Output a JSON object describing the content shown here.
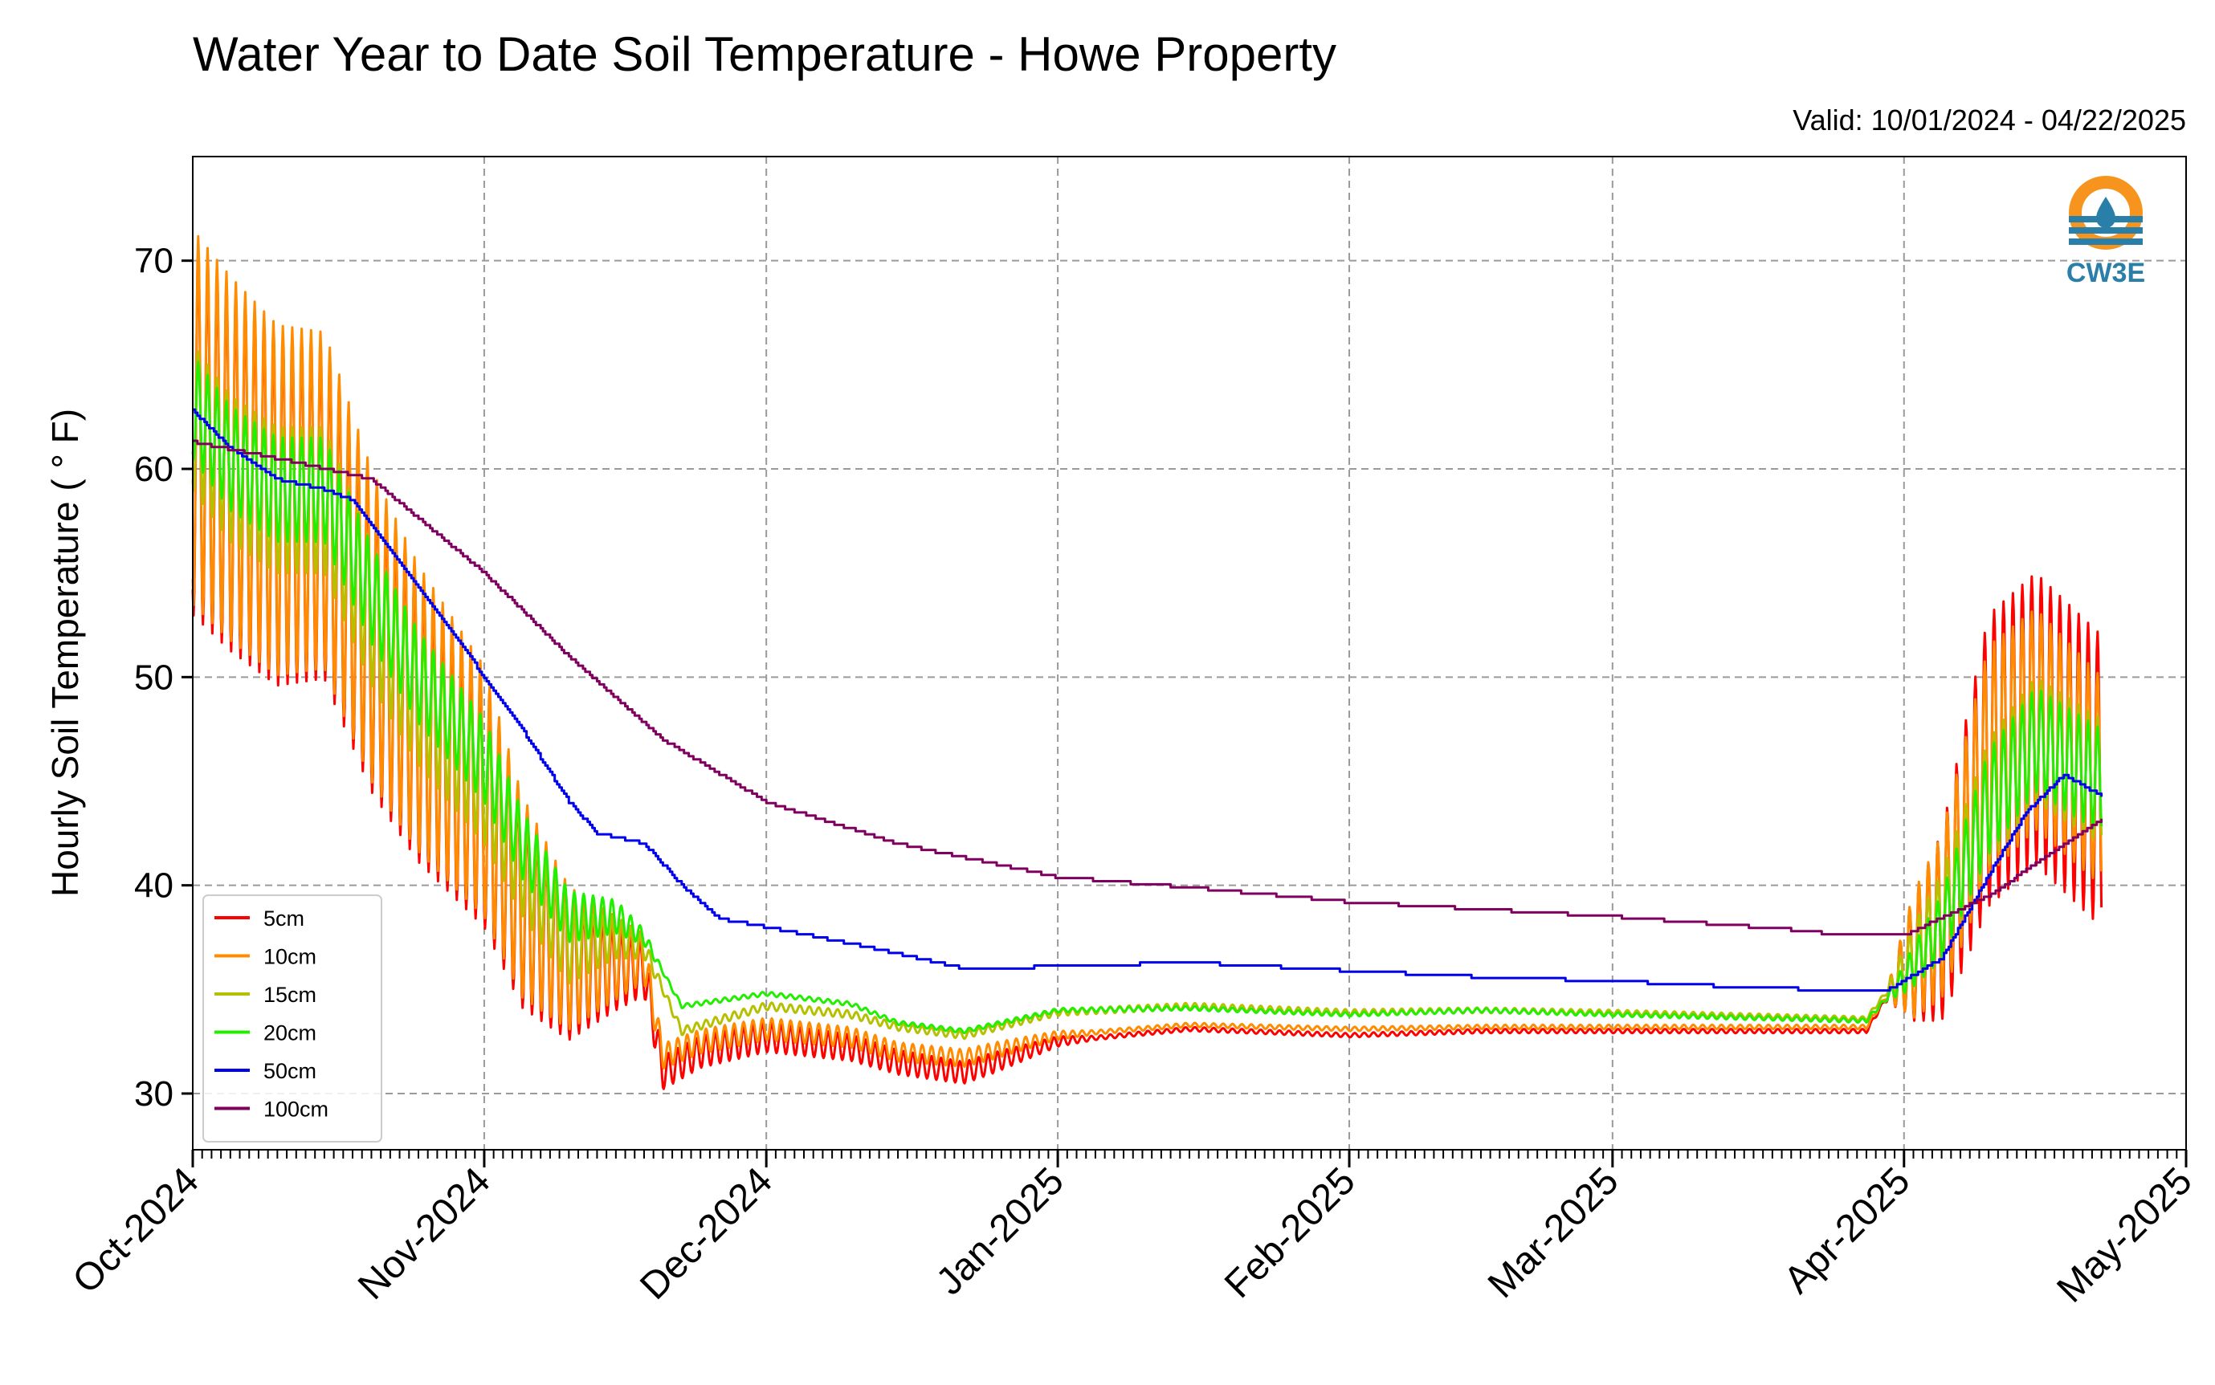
{
  "chart_data": {
    "type": "line",
    "title": "Water Year to Date Soil Temperature - Howe Property",
    "subtitle": "Valid: 10/01/2024 - 04/22/2025",
    "xlabel": "",
    "ylabel": "Hourly Soil Temperature ( ° F)",
    "x_axis": {
      "type": "date",
      "range": [
        "2024-10-01",
        "2025-05-01"
      ],
      "tick_labels": [
        "Oct-2024",
        "Nov-2024",
        "Dec-2024",
        "Jan-2025",
        "Feb-2025",
        "Mar-2025",
        "Apr-2025",
        "May-2025"
      ],
      "tick_dates": [
        "2024-10-01",
        "2024-11-01",
        "2024-12-01",
        "2025-01-01",
        "2025-02-01",
        "2025-03-01",
        "2025-04-01",
        "2025-05-01"
      ],
      "minor_ticks": "daily"
    },
    "y_axis": {
      "range": [
        27.3,
        75
      ],
      "ticks": [
        30,
        40,
        50,
        60,
        70
      ]
    },
    "grid": true,
    "legend_position": "lower-left",
    "logo_text": "CW3E",
    "series": [
      {
        "name": "5cm",
        "color": "#ff0000",
        "diurnal_amplitude": [
          {
            "date": "2024-10-01",
            "amplitude": 9
          },
          {
            "date": "2024-10-16",
            "amplitude": 8
          },
          {
            "date": "2024-11-01",
            "amplitude": 6
          },
          {
            "date": "2024-11-15",
            "amplitude": 2
          },
          {
            "date": "2024-11-20",
            "amplitude": 0.8
          },
          {
            "date": "2024-12-25",
            "amplitude": 0.5
          },
          {
            "date": "2025-01-05",
            "amplitude": 0.1
          },
          {
            "date": "2025-03-30",
            "amplitude": 0.1
          },
          {
            "date": "2025-04-02",
            "amplitude": 3
          },
          {
            "date": "2025-04-10",
            "amplitude": 7
          },
          {
            "date": "2025-04-22",
            "amplitude": 7
          }
        ],
        "points": [
          {
            "date": "2024-10-01",
            "value": 62
          },
          {
            "date": "2024-10-05",
            "value": 60
          },
          {
            "date": "2024-10-10",
            "value": 58
          },
          {
            "date": "2024-10-15",
            "value": 58
          },
          {
            "date": "2024-10-20",
            "value": 52
          },
          {
            "date": "2024-10-25",
            "value": 48
          },
          {
            "date": "2024-11-01",
            "value": 44
          },
          {
            "date": "2024-11-05",
            "value": 39
          },
          {
            "date": "2024-11-10",
            "value": 36
          },
          {
            "date": "2024-11-15",
            "value": 36
          },
          {
            "date": "2024-11-18",
            "value": 36
          },
          {
            "date": "2024-11-20",
            "value": 31
          },
          {
            "date": "2024-11-24",
            "value": 32
          },
          {
            "date": "2024-12-01",
            "value": 32.7
          },
          {
            "date": "2024-12-10",
            "value": 32.2
          },
          {
            "date": "2024-12-15",
            "value": 31.5
          },
          {
            "date": "2024-12-22",
            "value": 31
          },
          {
            "date": "2025-01-01",
            "value": 32.5
          },
          {
            "date": "2025-01-15",
            "value": 33.1
          },
          {
            "date": "2025-02-01",
            "value": 32.8
          },
          {
            "date": "2025-02-15",
            "value": 33
          },
          {
            "date": "2025-03-01",
            "value": 33
          },
          {
            "date": "2025-03-28",
            "value": 33
          },
          {
            "date": "2025-04-01",
            "value": 36
          },
          {
            "date": "2025-04-05",
            "value": 38
          },
          {
            "date": "2025-04-10",
            "value": 46
          },
          {
            "date": "2025-04-15",
            "value": 48
          },
          {
            "date": "2025-04-22",
            "value": 45
          }
        ]
      },
      {
        "name": "10cm",
        "color": "#ff8c00",
        "diurnal_amplitude": [
          {
            "date": "2024-10-01",
            "amplitude": 9
          },
          {
            "date": "2024-10-16",
            "amplitude": 8
          },
          {
            "date": "2024-11-01",
            "amplitude": 6
          },
          {
            "date": "2024-11-15",
            "amplitude": 2
          },
          {
            "date": "2024-11-20",
            "amplitude": 0.6
          },
          {
            "date": "2024-12-25",
            "amplitude": 0.4
          },
          {
            "date": "2025-01-05",
            "amplitude": 0.1
          },
          {
            "date": "2025-03-30",
            "amplitude": 0.1
          },
          {
            "date": "2025-04-02",
            "amplitude": 3
          },
          {
            "date": "2025-04-10",
            "amplitude": 5.5
          },
          {
            "date": "2025-04-22",
            "amplitude": 5
          }
        ],
        "points": [
          {
            "date": "2024-10-01",
            "value": 62.5
          },
          {
            "date": "2024-10-05",
            "value": 60.5
          },
          {
            "date": "2024-10-10",
            "value": 58.5
          },
          {
            "date": "2024-10-15",
            "value": 58.5
          },
          {
            "date": "2024-10-20",
            "value": 52.5
          },
          {
            "date": "2024-10-25",
            "value": 48.5
          },
          {
            "date": "2024-11-01",
            "value": 44.5
          },
          {
            "date": "2024-11-05",
            "value": 39.5
          },
          {
            "date": "2024-11-10",
            "value": 36.5
          },
          {
            "date": "2024-11-15",
            "value": 36.5
          },
          {
            "date": "2024-11-18",
            "value": 36.5
          },
          {
            "date": "2024-11-20",
            "value": 31.8
          },
          {
            "date": "2024-11-24",
            "value": 32.5
          },
          {
            "date": "2024-12-01",
            "value": 33.1
          },
          {
            "date": "2024-12-10",
            "value": 32.7
          },
          {
            "date": "2024-12-15",
            "value": 32
          },
          {
            "date": "2024-12-22",
            "value": 31.7
          },
          {
            "date": "2025-01-01",
            "value": 32.8
          },
          {
            "date": "2025-01-15",
            "value": 33.3
          },
          {
            "date": "2025-02-01",
            "value": 33.1
          },
          {
            "date": "2025-02-15",
            "value": 33.2
          },
          {
            "date": "2025-03-01",
            "value": 33.2
          },
          {
            "date": "2025-03-28",
            "value": 33.2
          },
          {
            "date": "2025-04-01",
            "value": 36
          },
          {
            "date": "2025-04-05",
            "value": 38.5
          },
          {
            "date": "2025-04-10",
            "value": 46
          },
          {
            "date": "2025-04-15",
            "value": 48
          },
          {
            "date": "2025-04-22",
            "value": 45
          }
        ]
      },
      {
        "name": "15cm",
        "color": "#b5c000",
        "diurnal_amplitude": [
          {
            "date": "2024-10-01",
            "amplitude": 3.5
          },
          {
            "date": "2024-10-16",
            "amplitude": 3.5
          },
          {
            "date": "2024-11-01",
            "amplitude": 3
          },
          {
            "date": "2024-11-15",
            "amplitude": 1
          },
          {
            "date": "2024-11-20",
            "amplitude": 0.2
          },
          {
            "date": "2025-03-30",
            "amplitude": 0.1
          },
          {
            "date": "2025-04-02",
            "amplitude": 1.5
          },
          {
            "date": "2025-04-10",
            "amplitude": 3
          },
          {
            "date": "2025-04-22",
            "amplitude": 3
          }
        ],
        "points": [
          {
            "date": "2024-10-01",
            "value": 62.5
          },
          {
            "date": "2024-10-05",
            "value": 60
          },
          {
            "date": "2024-10-10",
            "value": 58.5
          },
          {
            "date": "2024-10-15",
            "value": 58.5
          },
          {
            "date": "2024-10-20",
            "value": 53
          },
          {
            "date": "2024-10-25",
            "value": 49
          },
          {
            "date": "2024-11-01",
            "value": 45
          },
          {
            "date": "2024-11-05",
            "value": 41
          },
          {
            "date": "2024-11-10",
            "value": 37
          },
          {
            "date": "2024-11-15",
            "value": 37.5
          },
          {
            "date": "2024-11-18",
            "value": 37
          },
          {
            "date": "2024-11-22",
            "value": 33
          },
          {
            "date": "2024-12-01",
            "value": 34.2
          },
          {
            "date": "2024-12-10",
            "value": 33.8
          },
          {
            "date": "2024-12-15",
            "value": 33.2
          },
          {
            "date": "2024-12-22",
            "value": 32.8
          },
          {
            "date": "2025-01-01",
            "value": 33.9
          },
          {
            "date": "2025-01-15",
            "value": 34.2
          },
          {
            "date": "2025-02-01",
            "value": 33.9
          },
          {
            "date": "2025-02-15",
            "value": 34
          },
          {
            "date": "2025-03-01",
            "value": 33.9
          },
          {
            "date": "2025-03-28",
            "value": 33.6
          },
          {
            "date": "2025-04-01",
            "value": 36
          },
          {
            "date": "2025-04-05",
            "value": 38.5
          },
          {
            "date": "2025-04-10",
            "value": 44
          },
          {
            "date": "2025-04-15",
            "value": 47
          },
          {
            "date": "2025-04-22",
            "value": 45
          }
        ]
      },
      {
        "name": "20cm",
        "color": "#22ee00",
        "diurnal_amplitude": [
          {
            "date": "2024-10-01",
            "amplitude": 2.5
          },
          {
            "date": "2024-10-16",
            "amplitude": 2.5
          },
          {
            "date": "2024-11-01",
            "amplitude": 2
          },
          {
            "date": "2024-11-15",
            "amplitude": 0.8
          },
          {
            "date": "2024-11-20",
            "amplitude": 0.1
          },
          {
            "date": "2025-03-30",
            "amplitude": 0.1
          },
          {
            "date": "2025-04-02",
            "amplitude": 1
          },
          {
            "date": "2025-04-10",
            "amplitude": 2.5
          },
          {
            "date": "2025-04-22",
            "amplitude": 2.5
          }
        ],
        "points": [
          {
            "date": "2024-10-01",
            "value": 63
          },
          {
            "date": "2024-10-05",
            "value": 60.5
          },
          {
            "date": "2024-10-10",
            "value": 59
          },
          {
            "date": "2024-10-15",
            "value": 59
          },
          {
            "date": "2024-10-20",
            "value": 54
          },
          {
            "date": "2024-10-25",
            "value": 50
          },
          {
            "date": "2024-11-01",
            "value": 46
          },
          {
            "date": "2024-11-05",
            "value": 42
          },
          {
            "date": "2024-11-10",
            "value": 38.5
          },
          {
            "date": "2024-11-15",
            "value": 38.5
          },
          {
            "date": "2024-11-18",
            "value": 37.5
          },
          {
            "date": "2024-11-22",
            "value": 34.2
          },
          {
            "date": "2024-12-01",
            "value": 34.8
          },
          {
            "date": "2024-12-10",
            "value": 34.3
          },
          {
            "date": "2024-12-15",
            "value": 33.4
          },
          {
            "date": "2024-12-22",
            "value": 33
          },
          {
            "date": "2025-01-01",
            "value": 34
          },
          {
            "date": "2025-01-15",
            "value": 34.1
          },
          {
            "date": "2025-02-01",
            "value": 33.8
          },
          {
            "date": "2025-02-15",
            "value": 34
          },
          {
            "date": "2025-03-01",
            "value": 33.8
          },
          {
            "date": "2025-03-28",
            "value": 33.5
          },
          {
            "date": "2025-04-01",
            "value": 35.5
          },
          {
            "date": "2025-04-05",
            "value": 38
          },
          {
            "date": "2025-04-10",
            "value": 44
          },
          {
            "date": "2025-04-15",
            "value": 47
          },
          {
            "date": "2025-04-22",
            "value": 45
          }
        ]
      },
      {
        "name": "50cm",
        "color": "#0000ee",
        "step": true,
        "points": [
          {
            "date": "2024-10-01",
            "value": 62.8
          },
          {
            "date": "2024-10-05",
            "value": 61
          },
          {
            "date": "2024-10-10",
            "value": 59.5
          },
          {
            "date": "2024-10-15",
            "value": 59
          },
          {
            "date": "2024-10-18",
            "value": 58.5
          },
          {
            "date": "2024-10-23",
            "value": 55.5
          },
          {
            "date": "2024-10-28",
            "value": 52.5
          },
          {
            "date": "2024-11-01",
            "value": 50
          },
          {
            "date": "2024-11-05",
            "value": 47.5
          },
          {
            "date": "2024-11-10",
            "value": 44
          },
          {
            "date": "2024-11-13",
            "value": 42.5
          },
          {
            "date": "2024-11-18",
            "value": 42
          },
          {
            "date": "2024-11-22",
            "value": 40
          },
          {
            "date": "2024-11-26",
            "value": 38.4
          },
          {
            "date": "2024-12-01",
            "value": 38
          },
          {
            "date": "2024-12-10",
            "value": 37.2
          },
          {
            "date": "2024-12-20",
            "value": 36.2
          },
          {
            "date": "2024-12-22",
            "value": 36
          },
          {
            "date": "2025-01-01",
            "value": 36.1
          },
          {
            "date": "2025-01-15",
            "value": 36.3
          },
          {
            "date": "2025-02-01",
            "value": 35.9
          },
          {
            "date": "2025-02-15",
            "value": 35.6
          },
          {
            "date": "2025-03-01",
            "value": 35.4
          },
          {
            "date": "2025-03-15",
            "value": 35.1
          },
          {
            "date": "2025-03-30",
            "value": 34.9
          },
          {
            "date": "2025-04-05",
            "value": 36.5
          },
          {
            "date": "2025-04-10",
            "value": 40.5
          },
          {
            "date": "2025-04-14",
            "value": 43.5
          },
          {
            "date": "2025-04-18",
            "value": 45.3
          },
          {
            "date": "2025-04-22",
            "value": 44.3
          }
        ]
      },
      {
        "name": "100cm",
        "color": "#800060",
        "step": true,
        "points": [
          {
            "date": "2024-10-01",
            "value": 61.3
          },
          {
            "date": "2024-10-10",
            "value": 60.5
          },
          {
            "date": "2024-10-20",
            "value": 59.5
          },
          {
            "date": "2024-11-01",
            "value": 55
          },
          {
            "date": "2024-11-10",
            "value": 51
          },
          {
            "date": "2024-11-20",
            "value": 47
          },
          {
            "date": "2024-12-01",
            "value": 44
          },
          {
            "date": "2024-12-15",
            "value": 42
          },
          {
            "date": "2025-01-01",
            "value": 40.4
          },
          {
            "date": "2025-01-15",
            "value": 39.9
          },
          {
            "date": "2025-02-01",
            "value": 39.2
          },
          {
            "date": "2025-03-01",
            "value": 38.5
          },
          {
            "date": "2025-03-22",
            "value": 37.8
          },
          {
            "date": "2025-03-25",
            "value": 37.6
          },
          {
            "date": "2025-04-01",
            "value": 37.6
          },
          {
            "date": "2025-04-10",
            "value": 39.5
          },
          {
            "date": "2025-04-22",
            "value": 43.2
          }
        ]
      }
    ]
  }
}
